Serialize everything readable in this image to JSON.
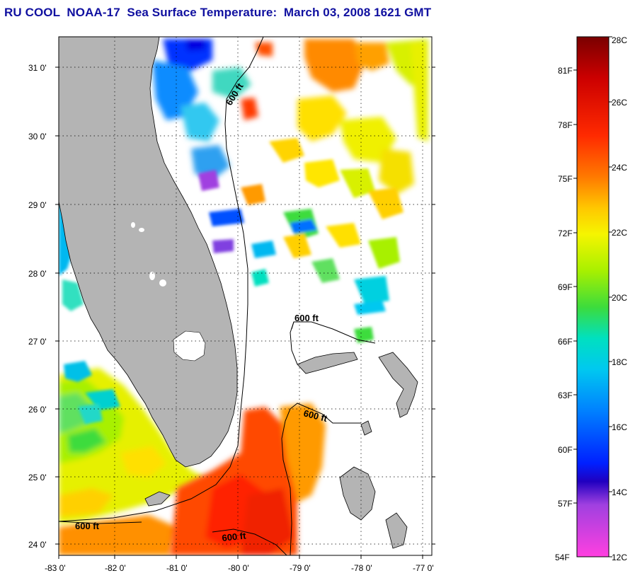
{
  "title": "RU COOL  NOAA-17  Sea Surface Temperature:  March 03, 2008 1621 GMT",
  "map": {
    "longitude_ticks": [
      "-83 0'",
      "-82 0'",
      "-81 0'",
      "-80 0'",
      "-79 0'",
      "-78 0'",
      "-77 0'"
    ],
    "latitude_ticks": [
      "31 0'",
      "30 0'",
      "29 0'",
      "28 0'",
      "27 0'",
      "26 0'",
      "25 0'",
      "24 0'"
    ],
    "lon_range": [
      -83,
      -76.9
    ],
    "lat_range": [
      23.9,
      31.45
    ],
    "grid": "dotted",
    "contour_labels": [
      "600 ft",
      "600 ft",
      "600 ft",
      "600 ft",
      "600 ft"
    ],
    "land_color": "#b4b4b4",
    "cloud_color": "#ffffff"
  },
  "colorbar": {
    "fahrenheit_labels": [
      "81F",
      "78F",
      "75F",
      "72F",
      "69F",
      "66F",
      "63F",
      "60F",
      "57F",
      "54F"
    ],
    "celsius_labels": [
      "28C",
      "26C",
      "24C",
      "22C",
      "20C",
      "18C",
      "16C",
      "14C",
      "12C"
    ],
    "range_c": [
      12,
      28
    ],
    "colors_top_to_bottom": [
      "#7a0000",
      "#cc0000",
      "#ff2a00",
      "#ff7a00",
      "#ffc800",
      "#f5f500",
      "#a8f000",
      "#3cdc3c",
      "#00e0c0",
      "#00c8f0",
      "#0080ff",
      "#0020ff",
      "#2000c0",
      "#a040e0",
      "#ff40e0"
    ]
  }
}
